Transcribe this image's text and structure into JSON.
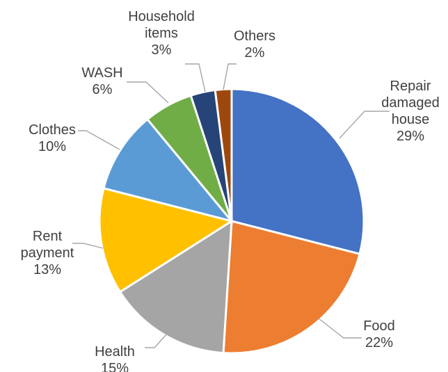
{
  "chart_data": {
    "type": "pie",
    "title": "",
    "start_angle_deg": 0,
    "direction": "clockwise",
    "slices": [
      {
        "name": "Repair damaged house",
        "label_lines": [
          "Repair",
          "damaged",
          "house"
        ],
        "value": 29,
        "value_label": "29%",
        "color": "#4472C4"
      },
      {
        "name": "Food",
        "label_lines": [
          "Food"
        ],
        "value": 22,
        "value_label": "22%",
        "color": "#ED7D31"
      },
      {
        "name": "Health",
        "label_lines": [
          "Health"
        ],
        "value": 15,
        "value_label": "15%",
        "color": "#A5A5A5"
      },
      {
        "name": "Rent payment",
        "label_lines": [
          "Rent",
          "payment"
        ],
        "value": 13,
        "value_label": "13%",
        "color": "#FFC000"
      },
      {
        "name": "Clothes",
        "label_lines": [
          "Clothes"
        ],
        "value": 10,
        "value_label": "10%",
        "color": "#5B9BD5"
      },
      {
        "name": "WASH",
        "label_lines": [
          "WASH"
        ],
        "value": 6,
        "value_label": "6%",
        "color": "#70AD47"
      },
      {
        "name": "Household items",
        "label_lines": [
          "Household",
          "items"
        ],
        "value": 3,
        "value_label": "3%",
        "color": "#264478"
      },
      {
        "name": "Others",
        "label_lines": [
          "Others"
        ],
        "value": 2,
        "value_label": "2%",
        "color": "#9E480E"
      }
    ]
  }
}
